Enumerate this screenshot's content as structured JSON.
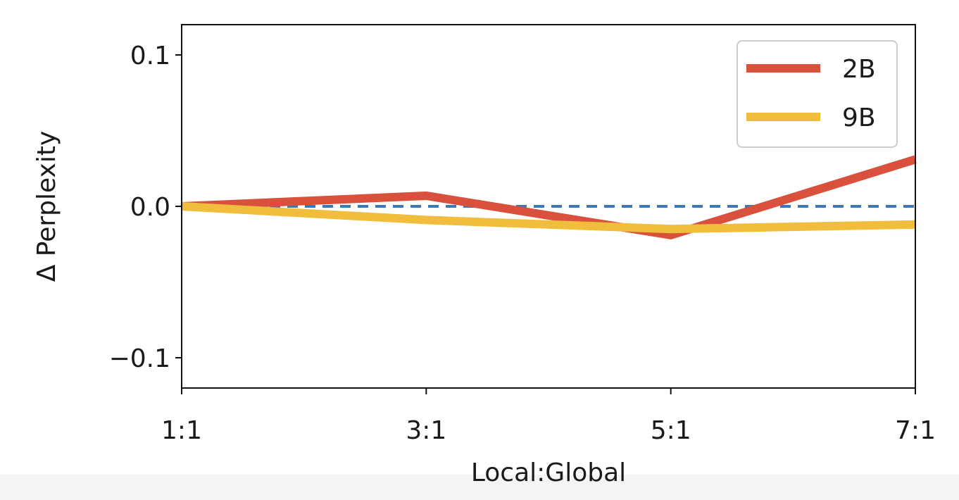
{
  "chart_data": {
    "type": "line",
    "title": "",
    "xlabel": "Local:Global",
    "ylabel": "Δ Perplexity",
    "categories": [
      "1:1",
      "3:1",
      "5:1",
      "7:1"
    ],
    "ylim": [
      -0.12,
      0.12
    ],
    "yticks": [
      {
        "value": -0.1,
        "label": "−0.1"
      },
      {
        "value": 0.0,
        "label": "0.0"
      },
      {
        "value": 0.1,
        "label": "0.1"
      }
    ],
    "baseline": {
      "value": 0.0,
      "style": "dashed",
      "color": "#3b78b7"
    },
    "grid": false,
    "legend_position": "top-right",
    "series": [
      {
        "name": "2B",
        "color": "#d9503c",
        "values": [
          0.0,
          0.007,
          -0.019,
          0.031
        ]
      },
      {
        "name": "9B",
        "color": "#f0bd3c",
        "values": [
          0.0,
          -0.009,
          -0.015,
          -0.012
        ]
      }
    ]
  }
}
